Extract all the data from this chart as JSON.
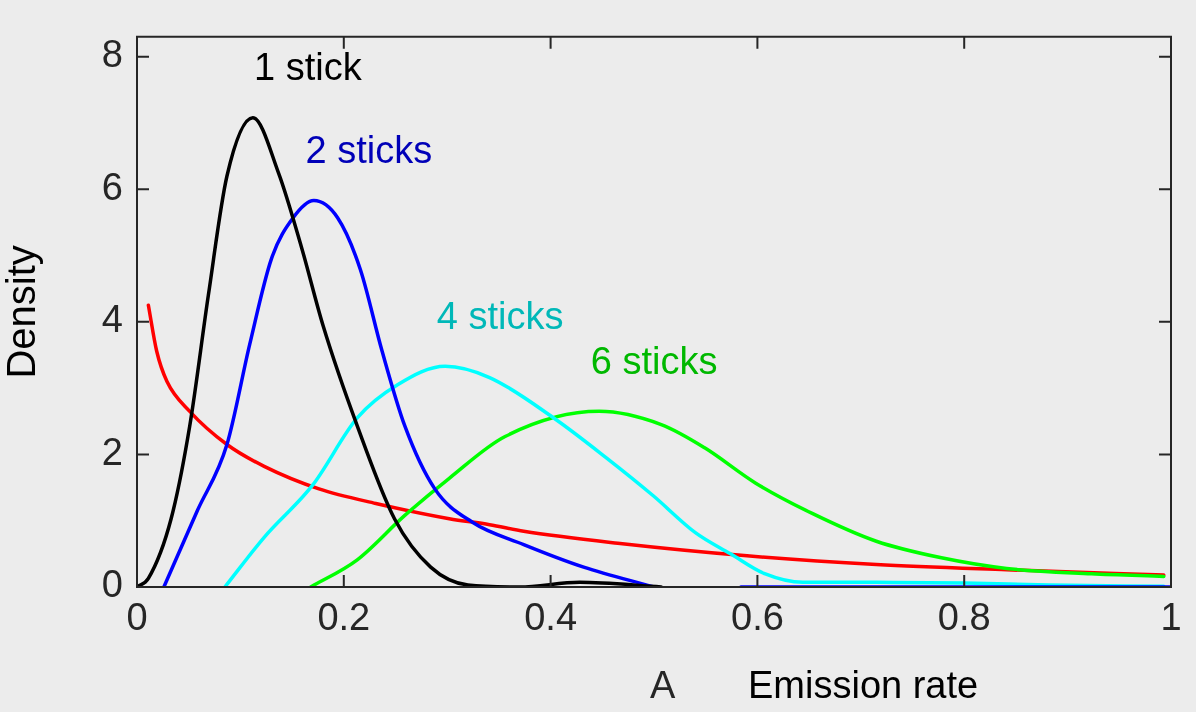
{
  "chart_data": {
    "type": "line",
    "xlabel": "Emission rate",
    "ylabel": "Density",
    "xlim": [
      0,
      1
    ],
    "xticks": [
      0,
      0.2,
      0.4,
      0.6,
      0.8,
      1
    ],
    "ylim": [
      0,
      8.3
    ],
    "yticks": [
      0,
      2,
      4,
      6,
      8
    ],
    "grid": false,
    "legend": false,
    "marker": "none",
    "line_style": "solid",
    "series": [
      {
        "name": "1 stick",
        "color": "#000000",
        "x": [
          0,
          0.011,
          0.033,
          0.051,
          0.069,
          0.087,
          0.112,
          0.137,
          0.159,
          0.18,
          0.213,
          0.249,
          0.284,
          0.32,
          0.37,
          0.428,
          0.507
        ],
        "values": [
          0,
          0.13,
          1.03,
          2.43,
          4.4,
          6.2,
          7.08,
          6.24,
          5.13,
          3.94,
          2.43,
          1.03,
          0.3,
          0.03,
          0,
          0.07,
          0
        ]
      },
      {
        "name": "2 sticks",
        "color": "#0000ff",
        "x": [
          0.026,
          0.058,
          0.087,
          0.109,
          0.13,
          0.151,
          0.171,
          0.194,
          0.216,
          0.237,
          0.259,
          0.288,
          0.324,
          0.374,
          0.432,
          0.5,
          0.542,
          0.584,
          0.8,
          1
        ],
        "values": [
          0,
          1.14,
          2.15,
          3.66,
          4.95,
          5.57,
          5.83,
          5.57,
          4.79,
          3.56,
          2.43,
          1.48,
          0.98,
          0.64,
          0.3,
          0,
          null,
          0,
          0,
          0
        ]
      },
      {
        "name": "4 sticks",
        "color": "#00ffff",
        "x": [
          0.085,
          0.123,
          0.17,
          0.213,
          0.252,
          0.298,
          0.341,
          0.403,
          0.453,
          0.499,
          0.54,
          0.574,
          0.607,
          0.644,
          0.715,
          0.8,
          0.882,
          0.993
        ],
        "values": [
          0,
          0.75,
          1.54,
          2.55,
          3.05,
          3.33,
          3.16,
          2.55,
          1.96,
          1.38,
          0.82,
          0.5,
          0.2,
          0.07,
          0.07,
          0.06,
          0.03,
          0.01
        ]
      },
      {
        "name": "6 sticks",
        "color": "#00ff00",
        "x": [
          0.168,
          0.213,
          0.259,
          0.302,
          0.356,
          0.447,
          0.507,
          0.549,
          0.598,
          0.653,
          0.715,
          0.778,
          0.841,
          0.923,
          0.993
        ],
        "values": [
          0,
          0.41,
          1.08,
          1.64,
          2.27,
          2.65,
          2.45,
          2.1,
          1.57,
          1.11,
          0.69,
          0.44,
          0.28,
          0.2,
          0.16
        ]
      },
      {
        "color": "#ff0000",
        "x": [
          0.011,
          0.019,
          0.029,
          0.051,
          0.087,
          0.123,
          0.176,
          0.231,
          0.302,
          0.341,
          0.374,
          0.465,
          0.59,
          0.715,
          0.841,
          0.993
        ],
        "values": [
          4.25,
          3.56,
          3.1,
          2.65,
          2.15,
          1.82,
          1.48,
          1.26,
          1.03,
          0.94,
          0.84,
          0.66,
          0.47,
          0.34,
          0.26,
          0.18
        ]
      }
    ],
    "annotations": [
      "A"
    ]
  }
}
